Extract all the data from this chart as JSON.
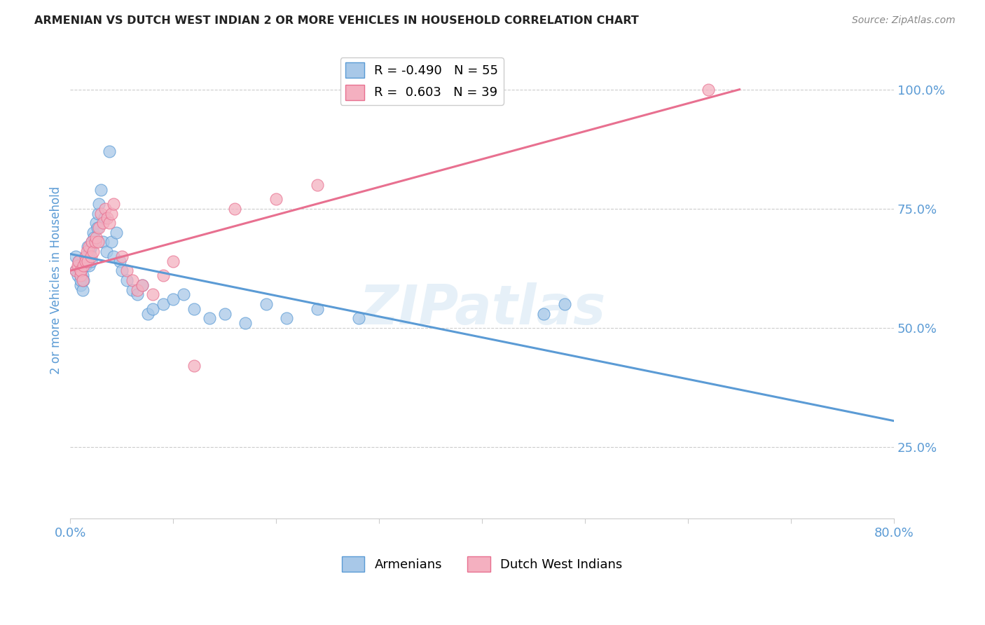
{
  "title": "ARMENIAN VS DUTCH WEST INDIAN 2 OR MORE VEHICLES IN HOUSEHOLD CORRELATION CHART",
  "source": "Source: ZipAtlas.com",
  "ylabel": "2 or more Vehicles in Household",
  "ytick_labels": [
    "100.0%",
    "75.0%",
    "50.0%",
    "25.0%"
  ],
  "ytick_values": [
    1.0,
    0.75,
    0.5,
    0.25
  ],
  "xlim": [
    0.0,
    0.8
  ],
  "ylim": [
    0.1,
    1.1
  ],
  "legend_blue_r": "R = -0.490",
  "legend_blue_n": "N = 55",
  "legend_pink_r": "R =  0.603",
  "legend_pink_n": "N = 39",
  "color_blue": "#a8c8e8",
  "color_pink": "#f4b0c0",
  "color_line_blue": "#5b9bd5",
  "color_line_pink": "#e87090",
  "color_axis_labels": "#5b9bd5",
  "watermark": "ZIPatlas",
  "armenians_x": [
    0.005,
    0.005,
    0.007,
    0.008,
    0.01,
    0.01,
    0.01,
    0.012,
    0.012,
    0.013,
    0.015,
    0.015,
    0.016,
    0.017,
    0.018,
    0.018,
    0.019,
    0.02,
    0.02,
    0.021,
    0.022,
    0.023,
    0.025,
    0.026,
    0.027,
    0.028,
    0.03,
    0.032,
    0.033,
    0.035,
    0.038,
    0.04,
    0.042,
    0.045,
    0.048,
    0.05,
    0.055,
    0.06,
    0.065,
    0.07,
    0.075,
    0.08,
    0.09,
    0.1,
    0.11,
    0.12,
    0.135,
    0.15,
    0.17,
    0.19,
    0.21,
    0.24,
    0.28,
    0.46,
    0.48
  ],
  "armenians_y": [
    0.65,
    0.62,
    0.61,
    0.64,
    0.59,
    0.6,
    0.62,
    0.58,
    0.61,
    0.6,
    0.63,
    0.65,
    0.64,
    0.67,
    0.65,
    0.63,
    0.66,
    0.67,
    0.64,
    0.68,
    0.7,
    0.69,
    0.72,
    0.71,
    0.74,
    0.76,
    0.79,
    0.68,
    0.73,
    0.66,
    0.87,
    0.68,
    0.65,
    0.7,
    0.64,
    0.62,
    0.6,
    0.58,
    0.57,
    0.59,
    0.53,
    0.54,
    0.55,
    0.56,
    0.57,
    0.54,
    0.52,
    0.53,
    0.51,
    0.55,
    0.52,
    0.54,
    0.52,
    0.53,
    0.55
  ],
  "dutch_x": [
    0.005,
    0.007,
    0.008,
    0.01,
    0.01,
    0.012,
    0.013,
    0.015,
    0.015,
    0.016,
    0.017,
    0.018,
    0.02,
    0.021,
    0.022,
    0.024,
    0.025,
    0.027,
    0.028,
    0.03,
    0.032,
    0.034,
    0.036,
    0.038,
    0.04,
    0.042,
    0.05,
    0.055,
    0.06,
    0.065,
    0.07,
    0.08,
    0.09,
    0.1,
    0.12,
    0.16,
    0.2,
    0.24,
    0.62
  ],
  "dutch_y": [
    0.62,
    0.63,
    0.64,
    0.61,
    0.62,
    0.6,
    0.63,
    0.65,
    0.64,
    0.66,
    0.64,
    0.67,
    0.65,
    0.68,
    0.66,
    0.68,
    0.69,
    0.68,
    0.71,
    0.74,
    0.72,
    0.75,
    0.73,
    0.72,
    0.74,
    0.76,
    0.65,
    0.62,
    0.6,
    0.58,
    0.59,
    0.57,
    0.61,
    0.64,
    0.42,
    0.75,
    0.77,
    0.8,
    1.0
  ],
  "blue_line_x": [
    0.0,
    0.8
  ],
  "blue_line_y": [
    0.655,
    0.305
  ],
  "pink_line_x": [
    0.0,
    0.65
  ],
  "pink_line_y": [
    0.62,
    1.0
  ]
}
